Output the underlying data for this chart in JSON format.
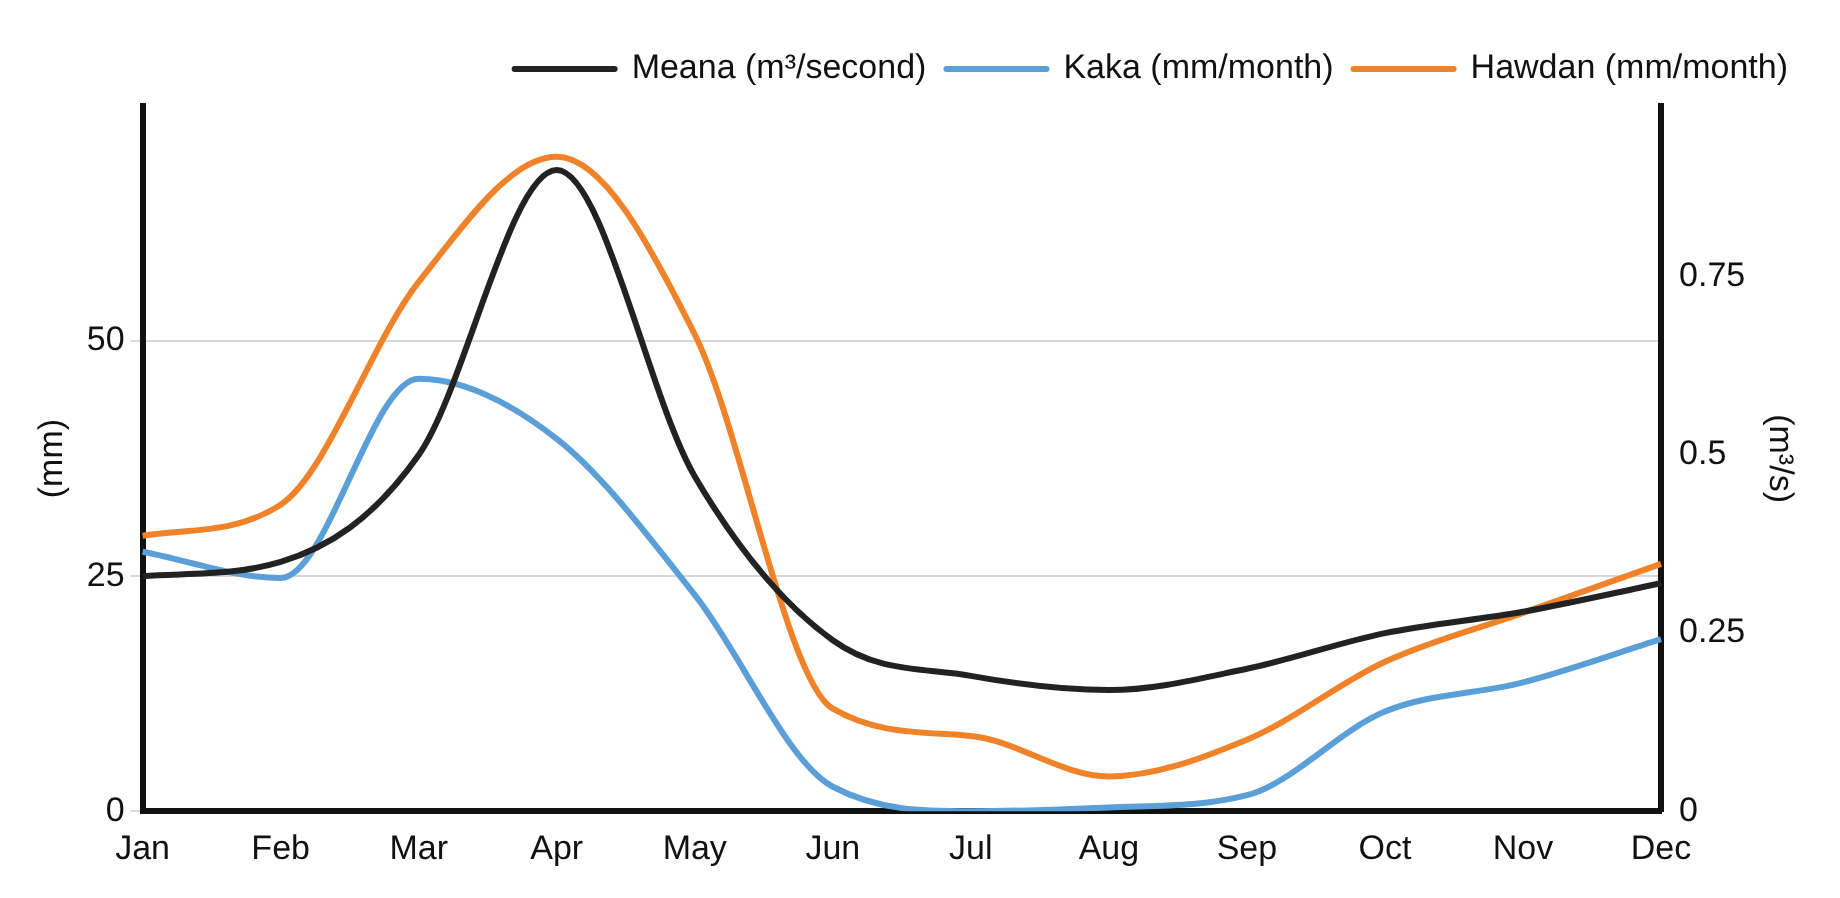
{
  "chart_data": {
    "type": "line",
    "ylabel": "(mm)",
    "y2label": "(m³/s)",
    "categories": [
      "Jan",
      "Feb",
      "Mar",
      "Apr",
      "May",
      "Jun",
      "Jul",
      "Aug",
      "Sep",
      "Oct",
      "Nov",
      "Dec"
    ],
    "series": [
      {
        "name": "Meana (m³/second)",
        "color": "#222222",
        "axis": "y2",
        "values": [
          0.33,
          0.35,
          0.5,
          0.9,
          0.47,
          0.24,
          0.19,
          0.17,
          0.2,
          0.25,
          0.28,
          0.32
        ]
      },
      {
        "name": "Kaka (mm/month)",
        "color": "#5a9fd8",
        "values": [
          27.6,
          24.8,
          46,
          39.6,
          23,
          2.6,
          0,
          0.4,
          1.7,
          10.6,
          13.7,
          18.3
        ]
      },
      {
        "name": "Hawdan (mm/month)",
        "color": "#f0832a",
        "values": [
          29.3,
          32.6,
          56.3,
          69.6,
          50.7,
          10.9,
          8,
          3.7,
          7.6,
          15.9,
          21.1,
          26.3
        ]
      }
    ],
    "ylim": [
      0,
      75
    ],
    "yticks": [
      0,
      25,
      50
    ],
    "y2lim": [
      0,
      0.99
    ],
    "y2ticks": [
      0,
      0.25,
      0.5,
      0.75
    ],
    "grid": "y",
    "legend": "top right",
    "marker": "none",
    "line_style": "solid"
  }
}
